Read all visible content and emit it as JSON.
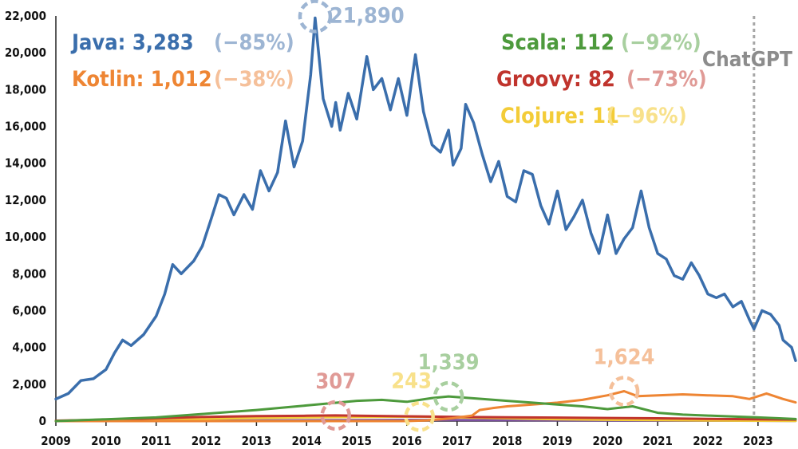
{
  "chart_data": {
    "type": "line",
    "title": "",
    "xlabel": "",
    "ylabel": "",
    "xlim": [
      2009,
      2023.75
    ],
    "ylim": [
      0,
      22000
    ],
    "grid": false,
    "x_ticks": [
      "2009",
      "2010",
      "2011",
      "2012",
      "2013",
      "2014",
      "2015",
      "2016",
      "2017",
      "2018",
      "2019",
      "2020",
      "2021",
      "2022",
      "2023"
    ],
    "y_ticks": [
      "0",
      "2,000",
      "4,000",
      "6,000",
      "8,000",
      "10,000",
      "12,000",
      "14,000",
      "16,000",
      "18,000",
      "20,000",
      "22,000"
    ],
    "marker": {
      "label": "ChatGPT",
      "x": 2022.92
    },
    "series": [
      {
        "name": "Java",
        "color": "#3a6eac",
        "legend_value": "3,283",
        "legend_change": "(−85%)",
        "change_color": "#9db5d3",
        "peak": {
          "x": 2014.17,
          "y": 21890,
          "label": "21,890"
        },
        "points": [
          [
            2009,
            1200
          ],
          [
            2009.25,
            1500
          ],
          [
            2009.5,
            2200
          ],
          [
            2009.75,
            2300
          ],
          [
            2010,
            2800
          ],
          [
            2010.17,
            3700
          ],
          [
            2010.33,
            4400
          ],
          [
            2010.5,
            4100
          ],
          [
            2010.75,
            4700
          ],
          [
            2011,
            5700
          ],
          [
            2011.17,
            6900
          ],
          [
            2011.33,
            8500
          ],
          [
            2011.5,
            8000
          ],
          [
            2011.75,
            8700
          ],
          [
            2011.92,
            9500
          ],
          [
            2012.1,
            11000
          ],
          [
            2012.25,
            12300
          ],
          [
            2012.4,
            12100
          ],
          [
            2012.55,
            11200
          ],
          [
            2012.75,
            12300
          ],
          [
            2012.92,
            11500
          ],
          [
            2013.08,
            13600
          ],
          [
            2013.25,
            12500
          ],
          [
            2013.42,
            13500
          ],
          [
            2013.58,
            16300
          ],
          [
            2013.75,
            13800
          ],
          [
            2013.92,
            15200
          ],
          [
            2014.08,
            18800
          ],
          [
            2014.17,
            21890
          ],
          [
            2014.33,
            17500
          ],
          [
            2014.5,
            16000
          ],
          [
            2014.58,
            17300
          ],
          [
            2014.67,
            15800
          ],
          [
            2014.83,
            17800
          ],
          [
            2015,
            16400
          ],
          [
            2015.2,
            19800
          ],
          [
            2015.33,
            18000
          ],
          [
            2015.5,
            18600
          ],
          [
            2015.67,
            16900
          ],
          [
            2015.83,
            18600
          ],
          [
            2016,
            16600
          ],
          [
            2016.17,
            19900
          ],
          [
            2016.33,
            16800
          ],
          [
            2016.5,
            15000
          ],
          [
            2016.67,
            14600
          ],
          [
            2016.83,
            15800
          ],
          [
            2016.92,
            13900
          ],
          [
            2017.08,
            14800
          ],
          [
            2017.17,
            17200
          ],
          [
            2017.33,
            16200
          ],
          [
            2017.5,
            14500
          ],
          [
            2017.67,
            13000
          ],
          [
            2017.83,
            14100
          ],
          [
            2018,
            12200
          ],
          [
            2018.17,
            11900
          ],
          [
            2018.33,
            13600
          ],
          [
            2018.5,
            13400
          ],
          [
            2018.67,
            11700
          ],
          [
            2018.83,
            10700
          ],
          [
            2019,
            12500
          ],
          [
            2019.17,
            10400
          ],
          [
            2019.33,
            11100
          ],
          [
            2019.5,
            12000
          ],
          [
            2019.67,
            10200
          ],
          [
            2019.83,
            9100
          ],
          [
            2020,
            11200
          ],
          [
            2020.17,
            9100
          ],
          [
            2020.33,
            9900
          ],
          [
            2020.5,
            10500
          ],
          [
            2020.67,
            12500
          ],
          [
            2020.83,
            10500
          ],
          [
            2021,
            9100
          ],
          [
            2021.17,
            8800
          ],
          [
            2021.33,
            7900
          ],
          [
            2021.5,
            7700
          ],
          [
            2021.67,
            8600
          ],
          [
            2021.83,
            7900
          ],
          [
            2022,
            6900
          ],
          [
            2022.17,
            6700
          ],
          [
            2022.33,
            6900
          ],
          [
            2022.5,
            6200
          ],
          [
            2022.67,
            6500
          ],
          [
            2022.83,
            5500
          ],
          [
            2022.92,
            5000
          ],
          [
            2023.08,
            6000
          ],
          [
            2023.25,
            5800
          ],
          [
            2023.42,
            5200
          ],
          [
            2023.5,
            4400
          ],
          [
            2023.67,
            4000
          ],
          [
            2023.75,
            3283
          ]
        ]
      },
      {
        "name": "Kotlin",
        "color": "#ee8533",
        "legend_value": "1,012",
        "legend_change": "(−38%)",
        "change_color": "#f5c09a",
        "peak": {
          "x": 2020.33,
          "y": 1624,
          "label": "1,624"
        },
        "points": [
          [
            2009,
            0
          ],
          [
            2016,
            0
          ],
          [
            2016.4,
            40
          ],
          [
            2016.9,
            150
          ],
          [
            2017.3,
            300
          ],
          [
            2017.45,
            600
          ],
          [
            2017.7,
            700
          ],
          [
            2018,
            800
          ],
          [
            2018.5,
            900
          ],
          [
            2019,
            1000
          ],
          [
            2019.5,
            1150
          ],
          [
            2020,
            1400
          ],
          [
            2020.33,
            1624
          ],
          [
            2020.6,
            1350
          ],
          [
            2021,
            1400
          ],
          [
            2021.5,
            1450
          ],
          [
            2022,
            1400
          ],
          [
            2022.5,
            1350
          ],
          [
            2022.83,
            1200
          ],
          [
            2023.17,
            1500
          ],
          [
            2023.5,
            1200
          ],
          [
            2023.75,
            1012
          ]
        ]
      },
      {
        "name": "Scala",
        "color": "#4d9a3c",
        "legend_value": "112",
        "legend_change": "(−92%)",
        "change_color": "#a8cf9f",
        "peak": {
          "x": 2016.83,
          "y": 1339,
          "label": "1,339"
        },
        "points": [
          [
            2009,
            0
          ],
          [
            2010,
            100
          ],
          [
            2011,
            200
          ],
          [
            2012,
            400
          ],
          [
            2013,
            600
          ],
          [
            2014,
            850
          ],
          [
            2015,
            1100
          ],
          [
            2015.5,
            1150
          ],
          [
            2016,
            1050
          ],
          [
            2016.5,
            1250
          ],
          [
            2016.83,
            1339
          ],
          [
            2017.5,
            1200
          ],
          [
            2018,
            1100
          ],
          [
            2018.5,
            1000
          ],
          [
            2019,
            900
          ],
          [
            2019.5,
            800
          ],
          [
            2020,
            650
          ],
          [
            2020.5,
            800
          ],
          [
            2021,
            450
          ],
          [
            2021.5,
            350
          ],
          [
            2022,
            300
          ],
          [
            2022.5,
            250
          ],
          [
            2023,
            200
          ],
          [
            2023.75,
            112
          ]
        ]
      },
      {
        "name": "Groovy",
        "color": "#c0342d",
        "legend_value": "82",
        "legend_change": "(−73%)",
        "change_color": "#e09a96",
        "peak": {
          "x": 2014.58,
          "y": 307,
          "label": "307"
        },
        "points": [
          [
            2009,
            20
          ],
          [
            2010,
            80
          ],
          [
            2011,
            150
          ],
          [
            2012,
            230
          ],
          [
            2013,
            270
          ],
          [
            2014,
            290
          ],
          [
            2014.58,
            307
          ],
          [
            2015,
            290
          ],
          [
            2016,
            260
          ],
          [
            2017,
            230
          ],
          [
            2018,
            210
          ],
          [
            2019,
            190
          ],
          [
            2020,
            170
          ],
          [
            2021,
            150
          ],
          [
            2022,
            120
          ],
          [
            2023,
            100
          ],
          [
            2023.75,
            82
          ]
        ]
      },
      {
        "name": "Clojure",
        "color": "#f3cc38",
        "legend_value": "11",
        "legend_change": "(−96%)",
        "change_color": "#f8e18b",
        "peak": {
          "x": 2016.25,
          "y": 243,
          "label": "243"
        },
        "points": [
          [
            2009,
            0
          ],
          [
            2010,
            30
          ],
          [
            2011,
            80
          ],
          [
            2012,
            130
          ],
          [
            2013,
            170
          ],
          [
            2014,
            200
          ],
          [
            2015,
            220
          ],
          [
            2016.25,
            243
          ],
          [
            2017,
            200
          ],
          [
            2018,
            150
          ],
          [
            2019,
            100
          ],
          [
            2020,
            70
          ],
          [
            2021,
            50
          ],
          [
            2022,
            30
          ],
          [
            2023,
            20
          ],
          [
            2023.75,
            11
          ]
        ]
      },
      {
        "name": "",
        "color": "#7b4fa0",
        "points": [
          [
            2009,
            0
          ],
          [
            2012,
            20
          ],
          [
            2016,
            60
          ],
          [
            2020,
            40
          ],
          [
            2023.75,
            15
          ]
        ]
      }
    ]
  }
}
